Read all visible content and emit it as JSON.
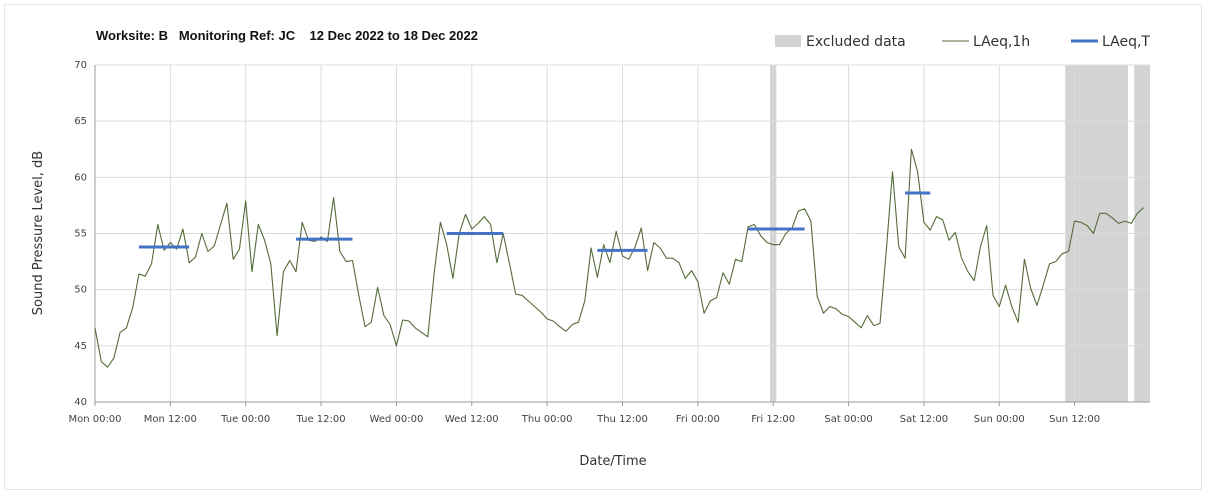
{
  "chart_data": {
    "type": "line",
    "title": "Worksite: B   Monitoring Ref: JC    12 Dec 2022 to 18 Dec 2022",
    "xlabel": "Date/Time",
    "ylabel": "Sound Pressure Level, dB",
    "ylim": [
      40,
      70
    ],
    "yticks": [
      40,
      45,
      50,
      55,
      60,
      65,
      70
    ],
    "xlim_hours": [
      0,
      168
    ],
    "xticks": [
      {
        "h": 0,
        "label": "Mon 00:00"
      },
      {
        "h": 12,
        "label": "Mon 12:00"
      },
      {
        "h": 24,
        "label": "Tue 00:00"
      },
      {
        "h": 36,
        "label": "Tue 12:00"
      },
      {
        "h": 48,
        "label": "Wed 00:00"
      },
      {
        "h": 60,
        "label": "Wed 12:00"
      },
      {
        "h": 72,
        "label": "Thu 00:00"
      },
      {
        "h": 84,
        "label": "Thu 12:00"
      },
      {
        "h": 96,
        "label": "Fri 00:00"
      },
      {
        "h": 108,
        "label": "Fri 12:00"
      },
      {
        "h": 120,
        "label": "Sat 00:00"
      },
      {
        "h": 132,
        "label": "Sat 12:00"
      },
      {
        "h": 144,
        "label": "Sun 00:00"
      },
      {
        "h": 156,
        "label": "Sun 12:00"
      }
    ],
    "grid": true,
    "legend_position": "top-right",
    "legend": [
      {
        "label": "Excluded data",
        "kind": "band",
        "color": "#d3d3d3"
      },
      {
        "label": "LAeq,1h",
        "kind": "thin-line",
        "color": "#556b3a"
      },
      {
        "label": "LAeq,T",
        "kind": "thick-line",
        "color": "#4472c4"
      }
    ],
    "excluded_ranges_hours": [
      [
        107.5,
        108.5
      ],
      [
        154.5,
        164.5
      ],
      [
        165.5,
        168
      ]
    ],
    "series": [
      {
        "name": "LAeq,1h",
        "color": "#556b3a",
        "points": [
          [
            0,
            46.6
          ],
          [
            1,
            43.6
          ],
          [
            2,
            43.1
          ],
          [
            3,
            43.9
          ],
          [
            4,
            46.2
          ],
          [
            5,
            46.6
          ],
          [
            6,
            48.4
          ],
          [
            7,
            51.4
          ],
          [
            8,
            51.2
          ],
          [
            9,
            52.3
          ],
          [
            10,
            55.8
          ],
          [
            11,
            53.5
          ],
          [
            12,
            54.2
          ],
          [
            13,
            53.6
          ],
          [
            14,
            55.4
          ],
          [
            15,
            52.4
          ],
          [
            16,
            52.9
          ],
          [
            17,
            55.0
          ],
          [
            18,
            53.4
          ],
          [
            19,
            53.9
          ],
          [
            20,
            55.8
          ],
          [
            21,
            57.7
          ],
          [
            22,
            52.7
          ],
          [
            23,
            53.6
          ],
          [
            24,
            57.9
          ],
          [
            25,
            51.6
          ],
          [
            26,
            55.8
          ],
          [
            27,
            54.4
          ],
          [
            28,
            52.3
          ],
          [
            29,
            45.9
          ],
          [
            30,
            51.6
          ],
          [
            31,
            52.6
          ],
          [
            32,
            51.6
          ],
          [
            33,
            56.0
          ],
          [
            34,
            54.4
          ],
          [
            35,
            54.3
          ],
          [
            36,
            54.7
          ],
          [
            37,
            54.3
          ],
          [
            38,
            58.2
          ],
          [
            39,
            53.4
          ],
          [
            40,
            52.5
          ],
          [
            41,
            52.6
          ],
          [
            42,
            49.5
          ],
          [
            43,
            46.7
          ],
          [
            44,
            47.1
          ],
          [
            45,
            50.2
          ],
          [
            46,
            47.7
          ],
          [
            47,
            46.9
          ],
          [
            48,
            45.0
          ],
          [
            49,
            47.3
          ],
          [
            50,
            47.2
          ],
          [
            51,
            46.6
          ],
          [
            52,
            46.2
          ],
          [
            53,
            45.8
          ],
          [
            54,
            51.4
          ],
          [
            55,
            56.0
          ],
          [
            56,
            54.0
          ],
          [
            57,
            51.0
          ],
          [
            58,
            55.0
          ],
          [
            59,
            56.7
          ],
          [
            60,
            55.4
          ],
          [
            61,
            55.9
          ],
          [
            62,
            56.5
          ],
          [
            63,
            55.8
          ],
          [
            64,
            52.4
          ],
          [
            65,
            55.0
          ],
          [
            66,
            52.3
          ],
          [
            67,
            49.6
          ],
          [
            68,
            49.5
          ],
          [
            69,
            49.0
          ],
          [
            70,
            48.5
          ],
          [
            71,
            48.0
          ],
          [
            72,
            47.4
          ],
          [
            73,
            47.2
          ],
          [
            74,
            46.7
          ],
          [
            75,
            46.3
          ],
          [
            76,
            46.9
          ],
          [
            77,
            47.1
          ],
          [
            78,
            49.0
          ],
          [
            79,
            53.7
          ],
          [
            80,
            51.1
          ],
          [
            81,
            54.0
          ],
          [
            82,
            52.4
          ],
          [
            83,
            55.2
          ],
          [
            84,
            53.0
          ],
          [
            85,
            52.7
          ],
          [
            86,
            53.8
          ],
          [
            87,
            55.5
          ],
          [
            88,
            51.7
          ],
          [
            89,
            54.2
          ],
          [
            90,
            53.7
          ],
          [
            91,
            52.8
          ],
          [
            92,
            52.8
          ],
          [
            93,
            52.4
          ],
          [
            94,
            51.0
          ],
          [
            95,
            51.7
          ],
          [
            96,
            50.7
          ],
          [
            97,
            47.9
          ],
          [
            98,
            49.0
          ],
          [
            99,
            49.3
          ],
          [
            100,
            51.5
          ],
          [
            101,
            50.5
          ],
          [
            102,
            52.7
          ],
          [
            103,
            52.5
          ],
          [
            104,
            55.6
          ],
          [
            105,
            55.8
          ],
          [
            106,
            54.8
          ],
          [
            107,
            54.2
          ],
          [
            108,
            54.0
          ],
          [
            109,
            54.0
          ],
          [
            110,
            55.0
          ],
          [
            111,
            55.5
          ],
          [
            112,
            57.0
          ],
          [
            113,
            57.2
          ],
          [
            114,
            56.1
          ],
          [
            115,
            49.4
          ],
          [
            116,
            47.9
          ],
          [
            117,
            48.5
          ],
          [
            118,
            48.3
          ],
          [
            119,
            47.8
          ],
          [
            120,
            47.6
          ],
          [
            121,
            47.1
          ],
          [
            122,
            46.6
          ],
          [
            123,
            47.7
          ],
          [
            124,
            46.8
          ],
          [
            125,
            47.0
          ],
          [
            126,
            53.5
          ],
          [
            127,
            60.5
          ],
          [
            128,
            53.8
          ],
          [
            129,
            52.8
          ],
          [
            130,
            62.5
          ],
          [
            131,
            60.5
          ],
          [
            132,
            56.0
          ],
          [
            133,
            55.3
          ],
          [
            134,
            56.5
          ],
          [
            135,
            56.2
          ],
          [
            136,
            54.4
          ],
          [
            137,
            55.1
          ],
          [
            138,
            52.8
          ],
          [
            139,
            51.6
          ],
          [
            140,
            50.8
          ],
          [
            141,
            53.8
          ],
          [
            142,
            55.7
          ],
          [
            143,
            49.5
          ],
          [
            144,
            48.5
          ],
          [
            145,
            50.4
          ],
          [
            146,
            48.5
          ],
          [
            147,
            47.1
          ],
          [
            148,
            52.7
          ],
          [
            149,
            50.1
          ],
          [
            150,
            48.6
          ],
          [
            151,
            50.4
          ],
          [
            152,
            52.3
          ],
          [
            153,
            52.5
          ],
          [
            154,
            53.2
          ],
          [
            155,
            53.4
          ],
          [
            156,
            56.1
          ],
          [
            157,
            56.0
          ],
          [
            158,
            55.7
          ],
          [
            159,
            55.0
          ],
          [
            160,
            56.8
          ],
          [
            161,
            56.8
          ],
          [
            162,
            56.4
          ],
          [
            163,
            55.9
          ],
          [
            164,
            56.1
          ],
          [
            165,
            55.9
          ],
          [
            166,
            56.8
          ],
          [
            167,
            57.3
          ]
        ]
      },
      {
        "name": "LAeq,T",
        "color": "#4472c4",
        "segments": [
          {
            "x": [
              7,
              15
            ],
            "y": 53.8
          },
          {
            "x": [
              32,
              41
            ],
            "y": 54.5
          },
          {
            "x": [
              56,
              65
            ],
            "y": 55.0
          },
          {
            "x": [
              80,
              88
            ],
            "y": 53.5
          },
          {
            "x": [
              104,
              113
            ],
            "y": 55.4
          },
          {
            "x": [
              129,
              133
            ],
            "y": 58.6
          }
        ]
      }
    ]
  }
}
